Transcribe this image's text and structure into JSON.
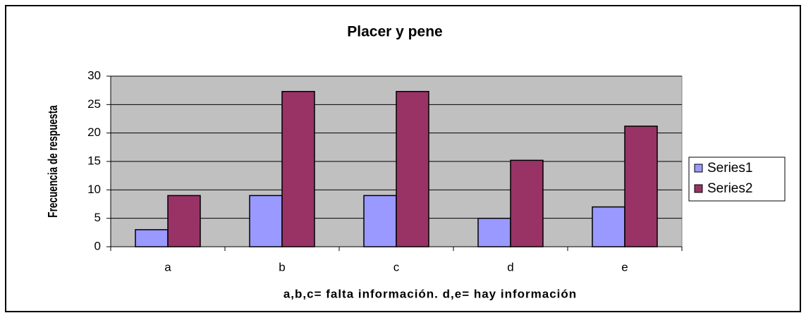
{
  "chart_data": {
    "type": "bar",
    "title": "Placer y pene",
    "x_label": "a,b,c= falta información. d,e= hay información",
    "y_label": "Frecuencia de respuesta",
    "categories": [
      "a",
      "b",
      "c",
      "d",
      "e"
    ],
    "series": [
      {
        "name": "Series1",
        "color": "#9999ff",
        "values": [
          3,
          9,
          9,
          5,
          7
        ]
      },
      {
        "name": "Series2",
        "color": "#993366",
        "values": [
          9,
          27.3,
          27.3,
          15.2,
          21.2
        ]
      }
    ],
    "ylim": [
      0,
      30
    ],
    "yticks": [
      0,
      5,
      10,
      15,
      20,
      25,
      30
    ],
    "grid": true,
    "legend": "right"
  }
}
